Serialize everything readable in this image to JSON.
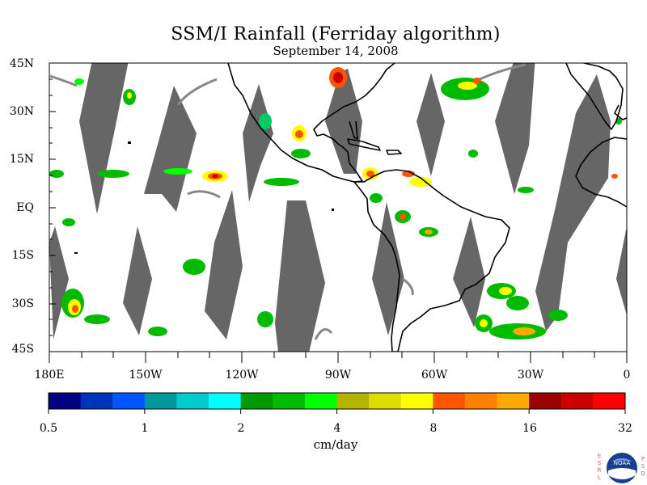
{
  "title": "SSM/I Rainfall (Ferriday algorithm)",
  "subtitle": "September 14, 2008",
  "lat_labels": [
    "45N",
    "30N",
    "15N",
    "EQ",
    "15S",
    "30S",
    "45S"
  ],
  "lon_labels": [
    "180E",
    "150W",
    "120W",
    "90W",
    "60W",
    "30W",
    "0"
  ],
  "colorbar": {
    "colors": [
      "#000080",
      "#0033bb",
      "#0055ff",
      "#009999",
      "#00cccc",
      "#00ffff",
      "#009900",
      "#00bb00",
      "#00ff00",
      "#b3b300",
      "#dddd00",
      "#ffff00",
      "#ff5500",
      "#ff8000",
      "#ffaa00",
      "#990000",
      "#cc0000",
      "#ff0000"
    ],
    "tick_labels": [
      "0.5",
      "1",
      "2",
      "4",
      "8",
      "16",
      "32"
    ],
    "units": "cm/day"
  },
  "colors": {
    "no_data_gray": "#666666",
    "land_outline": "#000000"
  },
  "logo": {
    "name": "NOAA",
    "left_letters": "ESRL",
    "right_letters": "PSD"
  }
}
